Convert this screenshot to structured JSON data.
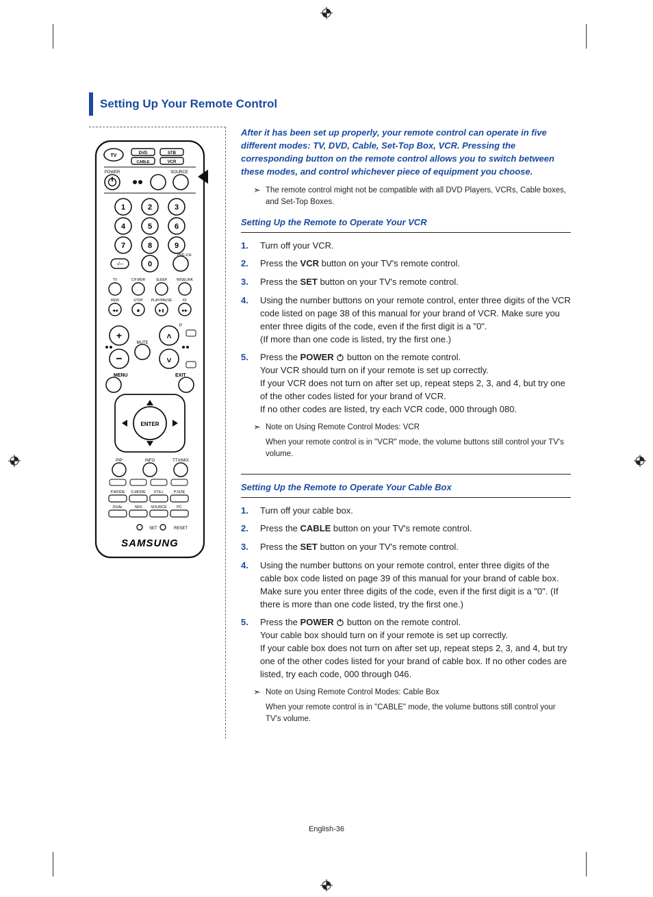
{
  "colors": {
    "accent": "#1a4aa0",
    "text": "#222222",
    "rule": "#222222",
    "dash": "#666666"
  },
  "heading": "Setting Up Your Remote Control",
  "intro": "After it has been set up properly, your remote control can operate in five different modes: TV, DVD, Cable, Set-Top Box, VCR. Pressing the corresponding button on the remote control allows you to switch between these modes, and control whichever piece of equipment you choose.",
  "top_note": "The remote control might not be compatible with all DVD Players, VCRs, Cable boxes, and Set-Top Boxes.",
  "sections": [
    {
      "title": "Setting Up the Remote to Operate Your VCR",
      "steps": [
        {
          "num": "1.",
          "html": "Turn off your VCR."
        },
        {
          "num": "2.",
          "html": "Press the <b>VCR</b> button on your TV's remote control."
        },
        {
          "num": "3.",
          "html": "Press the <b>SET</b> button on your TV's remote control."
        },
        {
          "num": "4.",
          "html": "Using the number buttons on your remote control, enter three digits of the VCR code listed on page 38 of this manual for your brand of VCR. Make sure you enter three digits of the code, even if the first digit is a \"0\".<br>(If more than one code is listed, try the first one.)"
        },
        {
          "num": "5.",
          "html": "Press the <b>POWER</b> <span class='power-icon'><svg viewBox='0 0 12 12'><circle cx='6' cy='6.5' r='4.2' fill='none' stroke='#222' stroke-width='1.2'/><line x1='6' y1='1' x2='6' y2='5.5' stroke='#222' stroke-width='1.4'/></svg></span> button on the remote control.<br>Your VCR should turn on if your remote is set up correctly.<br>If your VCR does not turn on after set up, repeat steps 2, 3, and 4, but try one of the other codes listed for your brand of VCR.<br>If no other codes are listed, try each VCR code, 000 through 080."
        }
      ],
      "note_title": "Note on Using Remote Control Modes: VCR",
      "note_body": "When your remote control is in \"VCR\" mode, the volume buttons still control your TV's volume."
    },
    {
      "title": "Setting Up the Remote to Operate Your Cable Box",
      "steps": [
        {
          "num": "1.",
          "html": "Turn off your cable box."
        },
        {
          "num": "2.",
          "html": "Press the <b>CABLE</b> button on your TV's remote control."
        },
        {
          "num": "3.",
          "html": "Press the <b>SET</b> button on your TV's remote control."
        },
        {
          "num": "4.",
          "html": "Using the number buttons on your remote control, enter three digits of the cable box code listed on page 39 of this manual for your brand of cable box. Make sure you enter three digits of the code, even if the first digit is a \"0\". (If there is more than one code listed, try the first one.)"
        },
        {
          "num": "5.",
          "html": "Press the <b>POWER</b> <span class='power-icon'><svg viewBox='0 0 12 12'><circle cx='6' cy='6.5' r='4.2' fill='none' stroke='#222' stroke-width='1.2'/><line x1='6' y1='1' x2='6' y2='5.5' stroke='#222' stroke-width='1.4'/></svg></span> button on the remote control.<br>Your cable box should turn on if your remote is set up correctly.<br>If your cable box does not turn on after set up, repeat steps 2, 3, and 4, but try one of the other codes listed for your brand of cable box. If no other codes are listed, try each code, 000 through 046."
        }
      ],
      "note_title": "Note on Using Remote Control Modes: Cable Box",
      "note_body": "When your remote control is in \"CABLE\" mode, the volume buttons still control your TV's volume."
    }
  ],
  "remote": {
    "brand": "SAMSUNG",
    "mode_buttons": [
      "TV",
      "DVD",
      "STB",
      "CABLE",
      "VCR"
    ],
    "top_labels": {
      "left": "POWER",
      "right": "SOURCE"
    },
    "numpad": [
      "1",
      "2",
      "3",
      "4",
      "5",
      "6",
      "7",
      "8",
      "9",
      "0"
    ],
    "prech": "PRE-CH",
    "row_labels_1": [
      "TV",
      "CH MGR",
      "SLEEP",
      "WISELINK"
    ],
    "row_labels_2": [
      "REW",
      "STOP",
      "PLAY/PAUSE",
      "FF"
    ],
    "vol_plus": "+",
    "vol_minus": "−",
    "mute": "MUTE",
    "ch_up": "˄",
    "ch_down": "˅",
    "p_label": "P",
    "menu": "MENU",
    "exit": "EXIT",
    "enter": "ENTER",
    "bottom_row1": [
      "PIP",
      "INFO",
      "TTX/MIX"
    ],
    "bottom_group_a": [
      "P.MODE",
      "S.MODE",
      "STILL",
      "P.SIZE"
    ],
    "bottom_group_b": [
      "DUAL",
      "SRS",
      "SOURCE",
      "PC"
    ],
    "set_reset": [
      "SET",
      "RESET"
    ]
  },
  "footer": "English-36"
}
